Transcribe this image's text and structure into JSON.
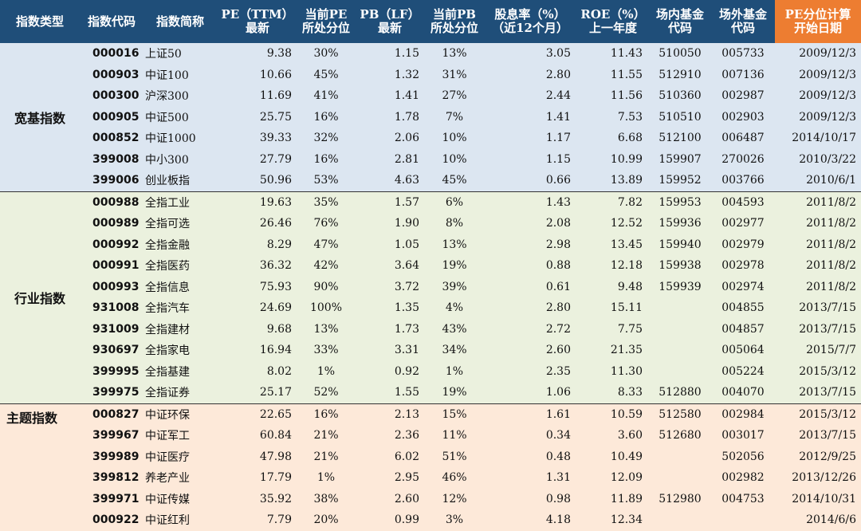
{
  "headers": [
    {
      "l1": "指数类型",
      "l2": ""
    },
    {
      "l1": "指数代码",
      "l2": ""
    },
    {
      "l1": "指数简称",
      "l2": ""
    },
    {
      "l1": "PE（TTM）",
      "l2": "最新"
    },
    {
      "l1": "当前PE",
      "l2": "所处分位"
    },
    {
      "l1": "PB（LF）",
      "l2": "最新"
    },
    {
      "l1": "当前PB",
      "l2": "所处分位"
    },
    {
      "l1": "股息率（%）",
      "l2": "（近12个月）"
    },
    {
      "l1": "ROE（%）",
      "l2": "上一年度"
    },
    {
      "l1": "场内基金",
      "l2": "代码"
    },
    {
      "l1": "场外基金",
      "l2": "代码"
    },
    {
      "l1": "PE分位计算",
      "l2": "开始日期"
    }
  ],
  "groups": [
    {
      "name": "宽基指数",
      "rows": [
        {
          "code": "000016",
          "name": "上证50",
          "pe": "9.38",
          "pe_pct": "30%",
          "pb": "1.15",
          "pb_pct": "13%",
          "div": "3.05",
          "roe": "11.43",
          "etf": "510050",
          "otc": "005733",
          "start": "2009/12/3"
        },
        {
          "code": "000903",
          "name": "中证100",
          "pe": "10.66",
          "pe_pct": "45%",
          "pb": "1.32",
          "pb_pct": "31%",
          "div": "2.80",
          "roe": "11.55",
          "etf": "512910",
          "otc": "007136",
          "start": "2009/12/3"
        },
        {
          "code": "000300",
          "name": "沪深300",
          "pe": "11.69",
          "pe_pct": "41%",
          "pb": "1.41",
          "pb_pct": "27%",
          "div": "2.44",
          "roe": "11.56",
          "etf": "510360",
          "otc": "002987",
          "start": "2009/12/3"
        },
        {
          "code": "000905",
          "name": "中证500",
          "pe": "25.75",
          "pe_pct": "16%",
          "pb": "1.78",
          "pb_pct": "7%",
          "div": "1.41",
          "roe": "7.53",
          "etf": "510510",
          "otc": "002903",
          "start": "2009/12/3"
        },
        {
          "code": "000852",
          "name": "中证1000",
          "pe": "39.33",
          "pe_pct": "32%",
          "pb": "2.06",
          "pb_pct": "10%",
          "div": "1.17",
          "roe": "6.68",
          "etf": "512100",
          "otc": "006487",
          "start": "2014/10/17"
        },
        {
          "code": "399008",
          "name": "中小300",
          "pe": "27.79",
          "pe_pct": "16%",
          "pb": "2.81",
          "pb_pct": "10%",
          "div": "1.15",
          "roe": "10.99",
          "etf": "159907",
          "otc": "270026",
          "start": "2010/3/22"
        },
        {
          "code": "399006",
          "name": "创业板指",
          "pe": "50.96",
          "pe_pct": "53%",
          "pb": "4.63",
          "pb_pct": "45%",
          "div": "0.66",
          "roe": "13.89",
          "etf": "159952",
          "otc": "003766",
          "start": "2010/6/1"
        }
      ]
    },
    {
      "name": "行业指数",
      "rows": [
        {
          "code": "000988",
          "name": "全指工业",
          "pe": "19.63",
          "pe_pct": "35%",
          "pb": "1.57",
          "pb_pct": "6%",
          "div": "1.43",
          "roe": "7.82",
          "etf": "159953",
          "otc": "004593",
          "start": "2011/8/2"
        },
        {
          "code": "000989",
          "name": "全指可选",
          "pe": "26.46",
          "pe_pct": "76%",
          "pb": "1.90",
          "pb_pct": "8%",
          "div": "2.08",
          "roe": "12.52",
          "etf": "159936",
          "otc": "002977",
          "start": "2011/8/2"
        },
        {
          "code": "000992",
          "name": "全指金融",
          "pe": "8.29",
          "pe_pct": "47%",
          "pb": "1.05",
          "pb_pct": "13%",
          "div": "2.98",
          "roe": "13.45",
          "etf": "159940",
          "otc": "002979",
          "start": "2011/8/2"
        },
        {
          "code": "000991",
          "name": "全指医药",
          "pe": "36.32",
          "pe_pct": "42%",
          "pb": "3.64",
          "pb_pct": "19%",
          "div": "0.88",
          "roe": "12.18",
          "etf": "159938",
          "otc": "002978",
          "start": "2011/8/2"
        },
        {
          "code": "000993",
          "name": "全指信息",
          "pe": "75.93",
          "pe_pct": "90%",
          "pb": "3.72",
          "pb_pct": "39%",
          "div": "0.61",
          "roe": "9.48",
          "etf": "159939",
          "otc": "002974",
          "start": "2011/8/2"
        },
        {
          "code": "931008",
          "name": "全指汽车",
          "pe": "24.69",
          "pe_pct": "100%",
          "pb": "1.35",
          "pb_pct": "4%",
          "div": "2.80",
          "roe": "15.11",
          "etf": "",
          "otc": "004855",
          "start": "2013/7/15"
        },
        {
          "code": "931009",
          "name": "全指建材",
          "pe": "9.68",
          "pe_pct": "13%",
          "pb": "1.73",
          "pb_pct": "43%",
          "div": "2.72",
          "roe": "7.75",
          "etf": "",
          "otc": "004857",
          "start": "2013/7/15"
        },
        {
          "code": "930697",
          "name": "全指家电",
          "pe": "16.94",
          "pe_pct": "33%",
          "pb": "3.31",
          "pb_pct": "34%",
          "div": "2.60",
          "roe": "21.35",
          "etf": "",
          "otc": "005064",
          "start": "2015/7/7"
        },
        {
          "code": "399995",
          "name": "全指基建",
          "pe": "8.02",
          "pe_pct": "1%",
          "pb": "0.92",
          "pb_pct": "1%",
          "div": "2.35",
          "roe": "11.30",
          "etf": "",
          "otc": "005224",
          "start": "2015/3/12"
        },
        {
          "code": "399975",
          "name": "全指证券",
          "pe": "25.17",
          "pe_pct": "52%",
          "pb": "1.55",
          "pb_pct": "19%",
          "div": "1.06",
          "roe": "8.33",
          "etf": "512880",
          "otc": "004070",
          "start": "2013/7/15"
        }
      ]
    },
    {
      "name": "主题指数",
      "rows": [
        {
          "code": "000827",
          "name": "中证环保",
          "pe": "22.65",
          "pe_pct": "16%",
          "pb": "2.13",
          "pb_pct": "15%",
          "div": "1.61",
          "roe": "10.59",
          "etf": "512580",
          "otc": "002984",
          "start": "2015/3/12"
        },
        {
          "code": "399967",
          "name": "中证军工",
          "pe": "60.84",
          "pe_pct": "21%",
          "pb": "2.36",
          "pb_pct": "11%",
          "div": "0.34",
          "roe": "3.60",
          "etf": "512680",
          "otc": "003017",
          "start": "2013/7/15"
        },
        {
          "code": "399989",
          "name": "中证医疗",
          "pe": "47.98",
          "pe_pct": "21%",
          "pb": "6.02",
          "pb_pct": "51%",
          "div": "0.48",
          "roe": "10.49",
          "etf": "",
          "otc": "502056",
          "start": "2012/9/25"
        },
        {
          "code": "399812",
          "name": "养老产业",
          "pe": "17.79",
          "pe_pct": "1%",
          "pb": "2.95",
          "pb_pct": "46%",
          "div": "1.31",
          "roe": "12.09",
          "etf": "",
          "otc": "002982",
          "start": "2013/12/26"
        },
        {
          "code": "399971",
          "name": "中证传媒",
          "pe": "35.92",
          "pe_pct": "38%",
          "pb": "2.60",
          "pb_pct": "12%",
          "div": "0.98",
          "roe": "11.89",
          "etf": "512980",
          "otc": "004753",
          "start": "2014/10/31"
        },
        {
          "code": "000922",
          "name": "中证红利",
          "pe": "7.79",
          "pe_pct": "20%",
          "pb": "0.99",
          "pb_pct": "3%",
          "div": "4.18",
          "roe": "12.34",
          "etf": "",
          "otc": "",
          "start": "2014/6/6"
        }
      ]
    }
  ]
}
